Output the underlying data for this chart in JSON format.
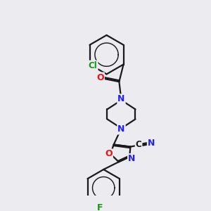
{
  "bg": "#ebebf0",
  "bond_color": "#1a1a1a",
  "bond_lw": 1.6,
  "atom_colors": {
    "N": "#2020ff",
    "O": "#ee1111",
    "F": "#119911",
    "Cl": "#119911",
    "C": "#1a1a1a"
  },
  "font_size_atom": 9.0,
  "font_size_small": 8.0
}
